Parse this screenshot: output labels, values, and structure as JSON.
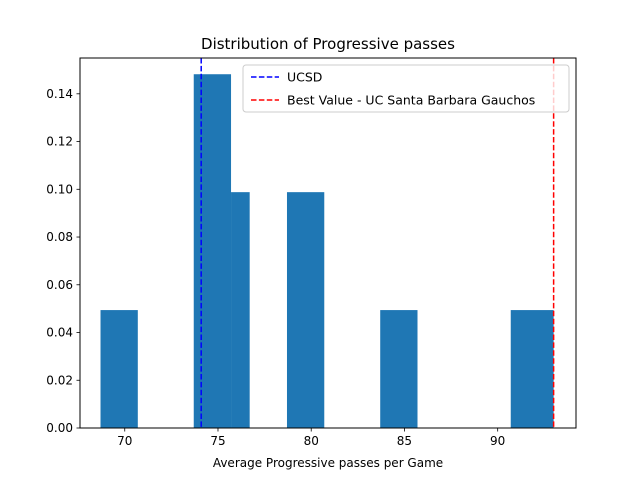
{
  "chart_data": {
    "type": "bar",
    "title": "Distribution of Progressive passes",
    "xlabel": "Average Progressive passes per Game",
    "ylabel": "",
    "xlim": [
      67.6,
      94.2
    ],
    "ylim": [
      0,
      0.155
    ],
    "xticks": [
      70,
      75,
      80,
      85,
      90
    ],
    "yticks": [
      0.0,
      0.02,
      0.04,
      0.06,
      0.08,
      0.1,
      0.12,
      0.14
    ],
    "bar_color": "#1f77b4",
    "bins": [
      {
        "x0": 68.7,
        "x1": 70.7,
        "density": 0.0494
      },
      {
        "x0": 73.7,
        "x1": 75.7,
        "density": 0.1482
      },
      {
        "x0": 75.7,
        "x1": 76.7,
        "density": 0.0988
      },
      {
        "x0": 78.7,
        "x1": 80.7,
        "density": 0.0988
      },
      {
        "x0": 83.7,
        "x1": 85.7,
        "density": 0.0494
      },
      {
        "x0": 90.7,
        "x1": 93.0,
        "density": 0.0494
      }
    ],
    "lines": [
      {
        "name": "UCSD",
        "x": 74.1,
        "color": "#0000ff",
        "style": "dashed"
      },
      {
        "name": "Best Value - UC Santa Barbara Gauchos",
        "x": 93.0,
        "color": "#ff0000",
        "style": "dashed"
      }
    ],
    "legend_position": "top-right",
    "grid": false
  }
}
